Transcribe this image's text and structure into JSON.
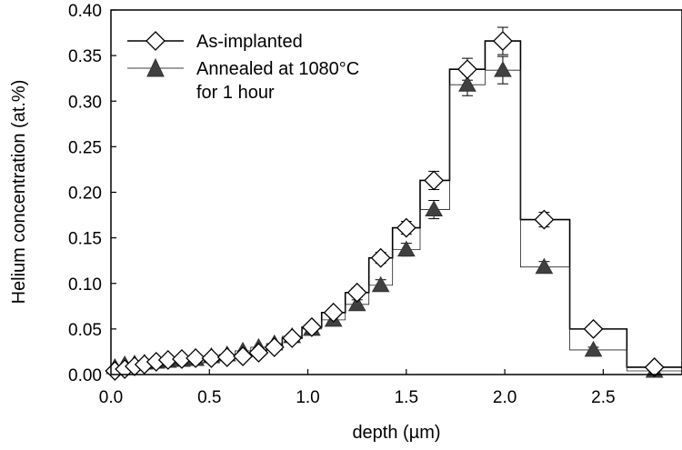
{
  "chart_data": {
    "type": "line",
    "xlabel": "depth (µm)",
    "ylabel": "Helium concentration (at.%)",
    "xlim": [
      0,
      2.9
    ],
    "ylim": [
      0,
      0.4
    ],
    "x_ticks": [
      "0.0",
      "0.5",
      "1.0",
      "1.5",
      "2.0",
      "2.5"
    ],
    "y_ticks": [
      "0.00",
      "0.05",
      "0.10",
      "0.15",
      "0.20",
      "0.25",
      "0.30",
      "0.35",
      "0.40"
    ],
    "legend_position": "top-left",
    "series": [
      {
        "name": "As-implanted",
        "marker": "diamond-open",
        "color": "#000000",
        "points": [
          {
            "x": 0.02,
            "y": 0.004,
            "err": 0
          },
          {
            "x": 0.07,
            "y": 0.006,
            "err": 0
          },
          {
            "x": 0.12,
            "y": 0.009,
            "err": 0
          },
          {
            "x": 0.17,
            "y": 0.011,
            "err": 0
          },
          {
            "x": 0.23,
            "y": 0.014,
            "err": 0
          },
          {
            "x": 0.29,
            "y": 0.016,
            "err": 0
          },
          {
            "x": 0.36,
            "y": 0.017,
            "err": 0
          },
          {
            "x": 0.43,
            "y": 0.018,
            "err": 0
          },
          {
            "x": 0.51,
            "y": 0.018,
            "err": 0
          },
          {
            "x": 0.59,
            "y": 0.019,
            "err": 0
          },
          {
            "x": 0.67,
            "y": 0.02,
            "err": 0
          },
          {
            "x": 0.75,
            "y": 0.024,
            "err": 0
          },
          {
            "x": 0.83,
            "y": 0.03,
            "err": 0
          },
          {
            "x": 0.92,
            "y": 0.04,
            "err": 0
          },
          {
            "x": 1.02,
            "y": 0.052,
            "err": 0.004
          },
          {
            "x": 1.13,
            "y": 0.068,
            "err": 0.004
          },
          {
            "x": 1.25,
            "y": 0.09,
            "err": 0.005
          },
          {
            "x": 1.37,
            "y": 0.128,
            "err": 0.006
          },
          {
            "x": 1.5,
            "y": 0.161,
            "err": 0.007
          },
          {
            "x": 1.64,
            "y": 0.213,
            "err": 0.01
          },
          {
            "x": 1.81,
            "y": 0.335,
            "err": 0.012
          },
          {
            "x": 1.99,
            "y": 0.366,
            "err": 0.015
          },
          {
            "x": 2.2,
            "y": 0.17,
            "err": 0.008
          },
          {
            "x": 2.45,
            "y": 0.05,
            "err": 0.003
          },
          {
            "x": 2.76,
            "y": 0.008,
            "err": 0
          }
        ],
        "bins": [
          [
            0.0,
            0.05,
            0.004
          ],
          [
            0.05,
            0.1,
            0.006
          ],
          [
            0.1,
            0.15,
            0.009
          ],
          [
            0.15,
            0.2,
            0.011
          ],
          [
            0.2,
            0.26,
            0.014
          ],
          [
            0.26,
            0.32,
            0.016
          ],
          [
            0.32,
            0.39,
            0.017
          ],
          [
            0.39,
            0.47,
            0.018
          ],
          [
            0.47,
            0.55,
            0.018
          ],
          [
            0.55,
            0.63,
            0.019
          ],
          [
            0.63,
            0.71,
            0.02
          ],
          [
            0.71,
            0.79,
            0.024
          ],
          [
            0.79,
            0.87,
            0.03
          ],
          [
            0.87,
            0.97,
            0.04
          ],
          [
            0.97,
            1.07,
            0.052
          ],
          [
            1.07,
            1.19,
            0.068
          ],
          [
            1.19,
            1.31,
            0.09
          ],
          [
            1.31,
            1.43,
            0.128
          ],
          [
            1.43,
            1.57,
            0.161
          ],
          [
            1.57,
            1.72,
            0.213
          ],
          [
            1.72,
            1.9,
            0.335
          ],
          [
            1.9,
            2.08,
            0.366
          ],
          [
            2.08,
            2.33,
            0.17
          ],
          [
            2.33,
            2.62,
            0.05
          ],
          [
            2.62,
            2.9,
            0.008
          ]
        ]
      },
      {
        "name": "Annealed at 1080°C\nfor 1 hour",
        "marker": "triangle-filled",
        "color": "#404040",
        "points": [
          {
            "x": 0.02,
            "y": 0.008,
            "err": 0
          },
          {
            "x": 0.07,
            "y": 0.011,
            "err": 0
          },
          {
            "x": 0.12,
            "y": 0.012,
            "err": 0
          },
          {
            "x": 0.17,
            "y": 0.013,
            "err": 0
          },
          {
            "x": 0.23,
            "y": 0.014,
            "err": 0
          },
          {
            "x": 0.29,
            "y": 0.015,
            "err": 0
          },
          {
            "x": 0.36,
            "y": 0.016,
            "err": 0
          },
          {
            "x": 0.43,
            "y": 0.017,
            "err": 0
          },
          {
            "x": 0.51,
            "y": 0.02,
            "err": 0
          },
          {
            "x": 0.59,
            "y": 0.022,
            "err": 0
          },
          {
            "x": 0.67,
            "y": 0.026,
            "err": 0
          },
          {
            "x": 0.75,
            "y": 0.03,
            "err": 0
          },
          {
            "x": 0.83,
            "y": 0.034,
            "err": 0
          },
          {
            "x": 0.92,
            "y": 0.042,
            "err": 0
          },
          {
            "x": 1.02,
            "y": 0.05,
            "err": 0.004
          },
          {
            "x": 1.13,
            "y": 0.06,
            "err": 0.004
          },
          {
            "x": 1.25,
            "y": 0.077,
            "err": 0.005
          },
          {
            "x": 1.37,
            "y": 0.098,
            "err": 0.006
          },
          {
            "x": 1.5,
            "y": 0.137,
            "err": 0.007
          },
          {
            "x": 1.64,
            "y": 0.181,
            "err": 0.01
          },
          {
            "x": 1.81,
            "y": 0.318,
            "err": 0.012
          },
          {
            "x": 1.99,
            "y": 0.334,
            "err": 0.015
          },
          {
            "x": 2.2,
            "y": 0.118,
            "err": 0.006
          },
          {
            "x": 2.45,
            "y": 0.027,
            "err": 0.003
          },
          {
            "x": 2.76,
            "y": 0.004,
            "err": 0
          }
        ],
        "bins": [
          [
            0.0,
            0.05,
            0.008
          ],
          [
            0.05,
            0.1,
            0.011
          ],
          [
            0.1,
            0.15,
            0.012
          ],
          [
            0.15,
            0.2,
            0.013
          ],
          [
            0.2,
            0.26,
            0.014
          ],
          [
            0.26,
            0.32,
            0.015
          ],
          [
            0.32,
            0.39,
            0.016
          ],
          [
            0.39,
            0.47,
            0.017
          ],
          [
            0.47,
            0.55,
            0.02
          ],
          [
            0.55,
            0.63,
            0.022
          ],
          [
            0.63,
            0.71,
            0.026
          ],
          [
            0.71,
            0.79,
            0.03
          ],
          [
            0.79,
            0.87,
            0.034
          ],
          [
            0.87,
            0.97,
            0.042
          ],
          [
            0.97,
            1.07,
            0.05
          ],
          [
            1.07,
            1.19,
            0.06
          ],
          [
            1.19,
            1.31,
            0.077
          ],
          [
            1.31,
            1.43,
            0.098
          ],
          [
            1.43,
            1.57,
            0.137
          ],
          [
            1.57,
            1.72,
            0.181
          ],
          [
            1.72,
            1.9,
            0.318
          ],
          [
            1.9,
            2.08,
            0.334
          ],
          [
            2.08,
            2.33,
            0.118
          ],
          [
            2.33,
            2.62,
            0.027
          ],
          [
            2.62,
            2.9,
            0.004
          ]
        ]
      }
    ]
  }
}
